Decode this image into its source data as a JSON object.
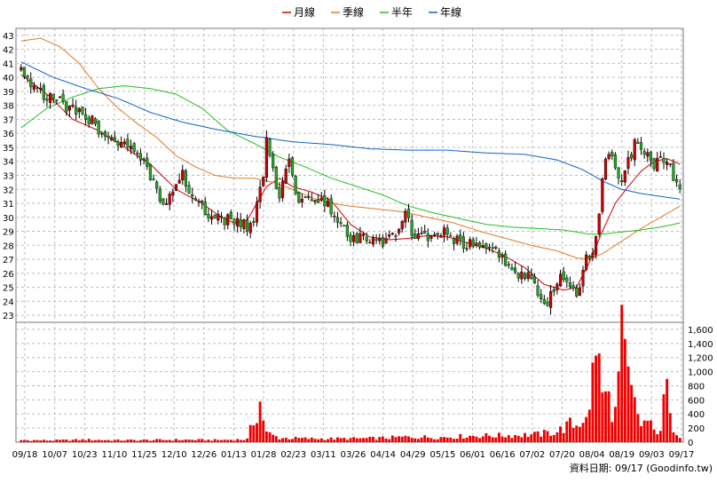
{
  "chart_data": {
    "type": "candlestick",
    "legend": [
      {
        "name": "月線",
        "color": "#cc0000"
      },
      {
        "name": "季線",
        "color": "#e07a1f"
      },
      {
        "name": "半年",
        "color": "#22c022"
      },
      {
        "name": "年線",
        "color": "#1060d0"
      }
    ],
    "legend_position": "top-center",
    "price_axis": {
      "ylim": [
        22.5,
        43.5
      ],
      "ticks": [
        23,
        24,
        25,
        26,
        27,
        28,
        29,
        30,
        31,
        32,
        33,
        34,
        35,
        36,
        37,
        38,
        39,
        40,
        41,
        42,
        43
      ]
    },
    "volume_axis": {
      "ylim": [
        0,
        1700
      ],
      "ticks": [
        0,
        200,
        400,
        600,
        800,
        1000,
        1200,
        1400,
        1600
      ],
      "tick_labels": [
        "0",
        "200",
        "400",
        "600",
        "800",
        "1,000",
        "1,200",
        "1,400",
        "1,600"
      ]
    },
    "x_labels": [
      "09/18",
      "10/07",
      "10/23",
      "11/10",
      "11/25",
      "12/10",
      "12/26",
      "01/13",
      "01/28",
      "02/23",
      "03/11",
      "03/26",
      "04/14",
      "04/29",
      "05/15",
      "06/01",
      "06/16",
      "07/02",
      "07/20",
      "08/04",
      "08/19",
      "09/03",
      "09/17"
    ],
    "grid": true,
    "up_color": "#cc0000",
    "down_color": "#22aa22",
    "source_text": "資料日期: 09/17  (Goodinfo.tw)",
    "close_path": [
      [
        0,
        40.5
      ],
      [
        4,
        39.5
      ],
      [
        8,
        38.6
      ],
      [
        12,
        38.2
      ],
      [
        16,
        37.6
      ],
      [
        20,
        37.2
      ],
      [
        24,
        36.4
      ],
      [
        28,
        35.6
      ],
      [
        32,
        35.1
      ],
      [
        36,
        34.4
      ],
      [
        40,
        33.0
      ],
      [
        44,
        31.0
      ],
      [
        48,
        32.6
      ],
      [
        50,
        33.0
      ],
      [
        54,
        31.0
      ],
      [
        58,
        30.3
      ],
      [
        62,
        30.0
      ],
      [
        66,
        29.6
      ],
      [
        70,
        29.4
      ],
      [
        72,
        29.7
      ],
      [
        75,
        33.0
      ],
      [
        76,
        35.5
      ],
      [
        78,
        33.5
      ],
      [
        80,
        31.0
      ],
      [
        83,
        34.4
      ],
      [
        86,
        31.0
      ],
      [
        90,
        31.5
      ],
      [
        94,
        31.2
      ],
      [
        97,
        30.0
      ],
      [
        101,
        28.7
      ],
      [
        106,
        28.4
      ],
      [
        111,
        28.2
      ],
      [
        116,
        28.5
      ],
      [
        119,
        30.5
      ],
      [
        122,
        28.4
      ],
      [
        126,
        28.7
      ],
      [
        130,
        29.0
      ],
      [
        134,
        28.3
      ],
      [
        138,
        28.1
      ],
      [
        142,
        28.0
      ],
      [
        146,
        27.6
      ],
      [
        150,
        26.8
      ],
      [
        154,
        26.0
      ],
      [
        158,
        25.6
      ],
      [
        161,
        24.5
      ],
      [
        163,
        23.9
      ],
      [
        165,
        25.0
      ],
      [
        167,
        26.2
      ],
      [
        170,
        25.0
      ],
      [
        172,
        24.4
      ],
      [
        175,
        27.0
      ],
      [
        178,
        28.2
      ],
      [
        180,
        33.0
      ],
      [
        182,
        34.8
      ],
      [
        184,
        33.8
      ],
      [
        186,
        32.3
      ],
      [
        188,
        34.0
      ],
      [
        190,
        35.3
      ],
      [
        193,
        34.5
      ],
      [
        196,
        33.8
      ],
      [
        198,
        34.6
      ],
      [
        200,
        33.8
      ],
      [
        202,
        33.0
      ],
      [
        204,
        32.3
      ]
    ],
    "ma_month": [
      [
        0,
        40.2
      ],
      [
        8,
        38.8
      ],
      [
        16,
        37.0
      ],
      [
        24,
        36.2
      ],
      [
        32,
        35.0
      ],
      [
        40,
        33.8
      ],
      [
        48,
        32.0
      ],
      [
        56,
        31.0
      ],
      [
        62,
        30.0
      ],
      [
        66,
        29.6
      ],
      [
        70,
        29.8
      ],
      [
        72,
        30.6
      ],
      [
        76,
        32.2
      ],
      [
        80,
        32.8
      ],
      [
        84,
        32.2
      ],
      [
        90,
        31.8
      ],
      [
        96,
        31.2
      ],
      [
        102,
        29.5
      ],
      [
        108,
        28.6
      ],
      [
        114,
        28.4
      ],
      [
        120,
        28.5
      ],
      [
        126,
        28.7
      ],
      [
        132,
        28.6
      ],
      [
        138,
        28.2
      ],
      [
        144,
        27.8
      ],
      [
        150,
        27.2
      ],
      [
        156,
        26.4
      ],
      [
        162,
        25.2
      ],
      [
        168,
        24.8
      ],
      [
        172,
        25.0
      ],
      [
        176,
        26.8
      ],
      [
        180,
        29.0
      ],
      [
        184,
        31.0
      ],
      [
        188,
        32.2
      ],
      [
        192,
        33.3
      ],
      [
        196,
        34.0
      ],
      [
        200,
        34.2
      ],
      [
        204,
        33.8
      ]
    ],
    "ma_season": [
      [
        0,
        42.6
      ],
      [
        6,
        42.8
      ],
      [
        12,
        42.2
      ],
      [
        18,
        41.0
      ],
      [
        24,
        39.2
      ],
      [
        30,
        37.8
      ],
      [
        36,
        36.7
      ],
      [
        42,
        35.7
      ],
      [
        48,
        34.4
      ],
      [
        54,
        33.6
      ],
      [
        60,
        33.0
      ],
      [
        66,
        32.8
      ],
      [
        72,
        32.8
      ],
      [
        78,
        32.5
      ],
      [
        84,
        32.0
      ],
      [
        90,
        31.4
      ],
      [
        96,
        31.0
      ],
      [
        102,
        30.8
      ],
      [
        110,
        30.6
      ],
      [
        118,
        30.4
      ],
      [
        126,
        30.0
      ],
      [
        134,
        29.6
      ],
      [
        142,
        29.0
      ],
      [
        150,
        28.5
      ],
      [
        158,
        28.0
      ],
      [
        166,
        27.6
      ],
      [
        172,
        27.1
      ],
      [
        176,
        27.0
      ],
      [
        180,
        27.4
      ],
      [
        186,
        28.3
      ],
      [
        192,
        29.2
      ],
      [
        198,
        30.0
      ],
      [
        204,
        30.8
      ]
    ],
    "ma_half": [
      [
        0,
        36.4
      ],
      [
        8,
        37.8
      ],
      [
        16,
        38.6
      ],
      [
        24,
        39.2
      ],
      [
        32,
        39.4
      ],
      [
        40,
        39.2
      ],
      [
        48,
        38.8
      ],
      [
        56,
        37.8
      ],
      [
        64,
        36.2
      ],
      [
        72,
        35.3
      ],
      [
        80,
        34.3
      ],
      [
        88,
        33.6
      ],
      [
        96,
        32.8
      ],
      [
        104,
        32.2
      ],
      [
        112,
        31.6
      ],
      [
        120,
        30.8
      ],
      [
        128,
        30.3
      ],
      [
        136,
        29.9
      ],
      [
        144,
        29.5
      ],
      [
        152,
        29.3
      ],
      [
        160,
        29.2
      ],
      [
        168,
        29.1
      ],
      [
        176,
        28.8
      ],
      [
        180,
        28.8
      ],
      [
        184,
        28.9
      ],
      [
        192,
        29.1
      ],
      [
        198,
        29.3
      ],
      [
        204,
        29.6
      ]
    ],
    "ma_year": [
      [
        0,
        41.1
      ],
      [
        10,
        40.0
      ],
      [
        20,
        39.2
      ],
      [
        30,
        38.5
      ],
      [
        40,
        37.5
      ],
      [
        50,
        36.8
      ],
      [
        60,
        36.3
      ],
      [
        72,
        35.8
      ],
      [
        84,
        35.4
      ],
      [
        96,
        35.2
      ],
      [
        108,
        34.9
      ],
      [
        120,
        34.8
      ],
      [
        132,
        34.8
      ],
      [
        144,
        34.6
      ],
      [
        156,
        34.5
      ],
      [
        166,
        34.1
      ],
      [
        174,
        33.4
      ],
      [
        180,
        32.6
      ],
      [
        186,
        32.0
      ],
      [
        192,
        31.7
      ],
      [
        198,
        31.5
      ],
      [
        204,
        31.3
      ]
    ],
    "volume_path": [
      [
        0,
        30
      ],
      [
        10,
        25
      ],
      [
        20,
        35
      ],
      [
        30,
        28
      ],
      [
        40,
        30
      ],
      [
        50,
        35
      ],
      [
        60,
        30
      ],
      [
        70,
        40
      ],
      [
        74,
        560
      ],
      [
        76,
        130
      ],
      [
        80,
        60
      ],
      [
        90,
        50
      ],
      [
        100,
        50
      ],
      [
        110,
        55
      ],
      [
        120,
        75
      ],
      [
        130,
        70
      ],
      [
        140,
        90
      ],
      [
        150,
        95
      ],
      [
        160,
        110
      ],
      [
        166,
        150
      ],
      [
        170,
        250
      ],
      [
        172,
        240
      ],
      [
        174,
        340
      ],
      [
        175,
        460
      ],
      [
        176,
        380
      ],
      [
        178,
        1590
      ],
      [
        179,
        1000
      ],
      [
        180,
        700
      ],
      [
        182,
        600
      ],
      [
        184,
        400
      ],
      [
        186,
        1400
      ],
      [
        188,
        850
      ],
      [
        190,
        500
      ],
      [
        192,
        250
      ],
      [
        194,
        300
      ],
      [
        196,
        150
      ],
      [
        198,
        200
      ],
      [
        200,
        800
      ],
      [
        201,
        300
      ],
      [
        203,
        150
      ],
      [
        204,
        100
      ]
    ]
  }
}
